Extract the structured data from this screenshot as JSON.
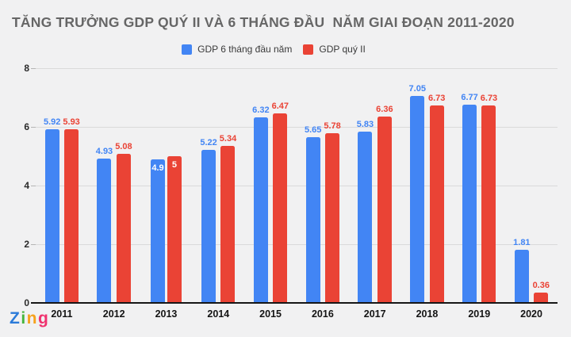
{
  "title": "TĂNG TRƯỞNG GDP QUÝ II VÀ 6 THÁNG ĐẦU  NĂM GIAI ĐOẠN 2011-2020",
  "legend": {
    "items": [
      {
        "label": "GDP 6 tháng đầu năm",
        "color": "#4285f4",
        "swatch": "blue-square-icon"
      },
      {
        "label": "GDP quý II",
        "color": "#ea4335",
        "swatch": "red-square-icon"
      }
    ]
  },
  "chart_data": {
    "type": "bar",
    "title": "TĂNG TRƯỞNG GDP QUÝ II VÀ 6 THÁNG ĐẦU  NĂM GIAI ĐOẠN 2011-2020",
    "categories": [
      "2011",
      "2012",
      "2013",
      "2014",
      "2015",
      "2016",
      "2017",
      "2018",
      "2019",
      "2020"
    ],
    "series": [
      {
        "name": "GDP 6 tháng đầu năm",
        "color": "#4285f4",
        "values": [
          5.92,
          4.93,
          4.9,
          5.22,
          6.32,
          5.65,
          5.83,
          7.05,
          6.77,
          1.81
        ]
      },
      {
        "name": "GDP quý II",
        "color": "#ea4335",
        "values": [
          5.93,
          5.08,
          5,
          5.34,
          6.47,
          5.78,
          6.36,
          6.73,
          6.73,
          0.36
        ]
      }
    ],
    "xlabel": "",
    "ylabel": "",
    "ylim": [
      0,
      8
    ],
    "yticks": [
      0,
      2,
      4,
      6,
      8
    ],
    "grid": true,
    "legend_position": "top",
    "value_labels": "above each bar, inside bars for 2013",
    "label_inside_categories": [
      "2013"
    ]
  },
  "watermark": {
    "text": "Zing",
    "letters": [
      {
        "char": "Z",
        "color": "#2b7bd9"
      },
      {
        "char": "i",
        "color": "#45b53c"
      },
      {
        "char": "n",
        "color": "#f6a21d"
      },
      {
        "char": "g",
        "color": "#f0326e"
      }
    ]
  }
}
